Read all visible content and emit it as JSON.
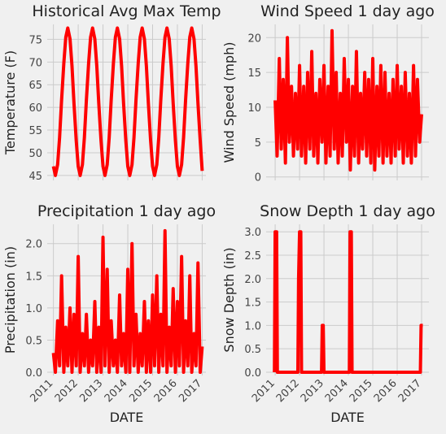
{
  "chart_data": [
    {
      "type": "line",
      "title": "Historical Avg Max Temp",
      "ylabel": "Temperature (F)",
      "color": "#ff0000",
      "grid": true,
      "x": [
        2011.0,
        2011.08,
        2011.17,
        2011.25,
        2011.33,
        2011.42,
        2011.5,
        2011.58,
        2011.67,
        2011.75,
        2011.83,
        2011.92,
        2012.0,
        2012.08,
        2012.17,
        2012.25,
        2012.33,
        2012.42,
        2012.5,
        2012.58,
        2012.67,
        2012.75,
        2012.83,
        2012.92,
        2013.0,
        2013.08,
        2013.17,
        2013.25,
        2013.33,
        2013.42,
        2013.5,
        2013.58,
        2013.67,
        2013.75,
        2013.83,
        2013.92,
        2014.0,
        2014.08,
        2014.17,
        2014.25,
        2014.33,
        2014.42,
        2014.5,
        2014.58,
        2014.67,
        2014.75,
        2014.83,
        2014.92,
        2015.0,
        2015.08,
        2015.17,
        2015.25,
        2015.33,
        2015.42,
        2015.5,
        2015.58,
        2015.67,
        2015.75,
        2015.83,
        2015.92,
        2016.0,
        2016.08,
        2016.17,
        2016.25,
        2016.33,
        2016.42,
        2016.5,
        2016.58,
        2016.67,
        2016.75,
        2016.83,
        2016.92,
        2017.0
      ],
      "values": [
        47.0,
        45.0,
        47.4,
        53.4,
        61.6,
        69.7,
        75.5,
        77.5,
        75.1,
        69.1,
        60.9,
        52.7,
        47.0,
        45.0,
        47.4,
        53.4,
        61.6,
        69.7,
        75.5,
        77.5,
        75.1,
        69.1,
        60.9,
        52.7,
        47.0,
        45.0,
        47.4,
        53.4,
        61.6,
        69.7,
        75.5,
        77.5,
        75.1,
        69.1,
        60.9,
        52.7,
        47.0,
        45.0,
        47.4,
        53.4,
        61.6,
        69.7,
        75.5,
        77.5,
        75.1,
        69.1,
        60.9,
        52.7,
        47.0,
        45.0,
        47.4,
        53.4,
        61.6,
        69.7,
        75.5,
        77.5,
        75.1,
        69.1,
        60.9,
        52.7,
        47.0,
        45.0,
        47.4,
        53.4,
        61.6,
        69.7,
        75.5,
        77.5,
        75.1,
        69.1,
        60.9,
        52.7,
        46.0
      ],
      "xlim": [
        2010.75,
        2017.15
      ],
      "xticks": [
        2011,
        2012,
        2013,
        2014,
        2015,
        2016,
        2017
      ],
      "ylim": [
        43.9,
        78.3
      ],
      "yticks": [
        45,
        50,
        55,
        60,
        65,
        70,
        75
      ]
    },
    {
      "type": "line",
      "title": "Wind Speed 1 day ago",
      "ylabel": "Wind Speed (mph)",
      "color": "#ff0000",
      "grid": true,
      "x": [
        2011.0,
        2011.08,
        2011.17,
        2011.25,
        2011.33,
        2011.42,
        2011.5,
        2011.58,
        2011.67,
        2011.75,
        2011.83,
        2011.92,
        2012.0,
        2012.08,
        2012.17,
        2012.25,
        2012.33,
        2012.42,
        2012.5,
        2012.58,
        2012.67,
        2012.75,
        2012.83,
        2012.92,
        2013.0,
        2013.08,
        2013.17,
        2013.25,
        2013.33,
        2013.42,
        2013.5,
        2013.58,
        2013.67,
        2013.75,
        2013.83,
        2013.92,
        2014.0,
        2014.08,
        2014.17,
        2014.25,
        2014.33,
        2014.42,
        2014.5,
        2014.58,
        2014.67,
        2014.75,
        2014.83,
        2014.92,
        2015.0,
        2015.08,
        2015.17,
        2015.25,
        2015.33,
        2015.42,
        2015.5,
        2015.58,
        2015.67,
        2015.75,
        2015.83,
        2015.92,
        2016.0,
        2016.08,
        2016.17,
        2016.25,
        2016.33,
        2016.42,
        2016.5,
        2016.58,
        2016.67,
        2016.75,
        2016.83,
        2016.92,
        2017.0
      ],
      "values": [
        11,
        3,
        17,
        4,
        14,
        2,
        20,
        5,
        13,
        3,
        12,
        4,
        16,
        3,
        13,
        2,
        15,
        4,
        18,
        3,
        12,
        2,
        14,
        5,
        16,
        2,
        13,
        3,
        21,
        4,
        15,
        2,
        12,
        3,
        17,
        5,
        14,
        1,
        13,
        3,
        18,
        2,
        12,
        4,
        15,
        3,
        14,
        2,
        17,
        1,
        13,
        3,
        16,
        2,
        15,
        3,
        12,
        2,
        14,
        3,
        16,
        4,
        13,
        2,
        15,
        3,
        12,
        2,
        16,
        3,
        14,
        5,
        9
      ],
      "xlim": [
        2010.63,
        2017.3
      ],
      "xticks": [
        2011,
        2012,
        2013,
        2014,
        2015,
        2016,
        2017
      ],
      "ylim": [
        -0.5,
        21.9
      ],
      "yticks": [
        0,
        5,
        10,
        15,
        20
      ]
    },
    {
      "type": "line",
      "title": "Precipitation 1 day ago",
      "ylabel": "Precipitation (in)",
      "xlabel": "DATE",
      "color": "#ff0000",
      "grid": true,
      "x": [
        2011.0,
        2011.08,
        2011.17,
        2011.25,
        2011.33,
        2011.42,
        2011.5,
        2011.58,
        2011.67,
        2011.75,
        2011.83,
        2011.92,
        2012.0,
        2012.08,
        2012.17,
        2012.25,
        2012.33,
        2012.42,
        2012.5,
        2012.58,
        2012.67,
        2012.75,
        2012.83,
        2012.92,
        2013.0,
        2013.08,
        2013.17,
        2013.25,
        2013.33,
        2013.42,
        2013.5,
        2013.58,
        2013.67,
        2013.75,
        2013.83,
        2013.92,
        2014.0,
        2014.08,
        2014.17,
        2014.25,
        2014.33,
        2014.42,
        2014.5,
        2014.58,
        2014.67,
        2014.75,
        2014.83,
        2014.92,
        2015.0,
        2015.08,
        2015.17,
        2015.25,
        2015.33,
        2015.42,
        2015.5,
        2015.58,
        2015.67,
        2015.75,
        2015.83,
        2015.92,
        2016.0,
        2016.08,
        2016.17,
        2016.25,
        2016.33,
        2016.42,
        2016.5,
        2016.58,
        2016.67,
        2016.75,
        2016.83,
        2016.92,
        2017.0
      ],
      "values": [
        0.3,
        0,
        0.8,
        0.1,
        1.5,
        0,
        0.7,
        0.1,
        1.0,
        0,
        0.9,
        0.1,
        1.8,
        0,
        0.6,
        0.1,
        0.9,
        0,
        0.5,
        0.1,
        1.1,
        0,
        0.7,
        0,
        2.1,
        0.1,
        1.6,
        0,
        0.8,
        0.1,
        0.5,
        0,
        1.2,
        0.1,
        0.6,
        0,
        1.6,
        0,
        2.0,
        0.1,
        0.9,
        0,
        0.6,
        0.1,
        1.1,
        0,
        0.8,
        0,
        1.2,
        0.1,
        1.5,
        0,
        0.9,
        0.1,
        2.2,
        0,
        0.7,
        0.1,
        1.3,
        0,
        1.1,
        0.1,
        1.8,
        0,
        0.8,
        0.1,
        1.5,
        0,
        0.6,
        0.1,
        1.7,
        0,
        0.4
      ],
      "xlim": [
        2010.75,
        2017.15
      ],
      "xticks": [
        2011,
        2012,
        2013,
        2014,
        2015,
        2016,
        2017
      ],
      "ylim": [
        -0.05,
        2.3
      ],
      "yticks": [
        {
          "value": 0,
          "label": "0.0"
        },
        0.5,
        {
          "value": 1,
          "label": "1.0"
        },
        1.5,
        {
          "value": 2,
          "label": "2.0"
        }
      ]
    },
    {
      "type": "line",
      "title": "Snow Depth 1 day ago",
      "ylabel": "Snow Depth (in)",
      "xlabel": "DATE",
      "color": "#ff0000",
      "grid": true,
      "x": [
        2010.97,
        2011.0,
        2011.06,
        2011.09,
        2011.93,
        2011.96,
        2012.0,
        2012.05,
        2012.08,
        2012.9,
        2012.93,
        2012.97,
        2013.0,
        2014.04,
        2014.07,
        2014.12,
        2014.15,
        2016.95,
        2016.98,
        2017.05
      ],
      "values": [
        0,
        3,
        3,
        0,
        0,
        2,
        3,
        3,
        0,
        0,
        1,
        1,
        0,
        0,
        3,
        3,
        0,
        0,
        1,
        1
      ],
      "xlim": [
        2010.63,
        2017.3
      ],
      "xticks": [
        2011,
        2012,
        2013,
        2014,
        2015,
        2016,
        2017
      ],
      "ylim": [
        -0.07,
        3.16
      ],
      "yticks": [
        {
          "value": 0,
          "label": "0.0"
        },
        0.5,
        {
          "value": 1,
          "label": "1.0"
        },
        1.5,
        {
          "value": 2,
          "label": "2.0"
        },
        2.5,
        {
          "value": 3,
          "label": "3.0"
        }
      ]
    }
  ]
}
